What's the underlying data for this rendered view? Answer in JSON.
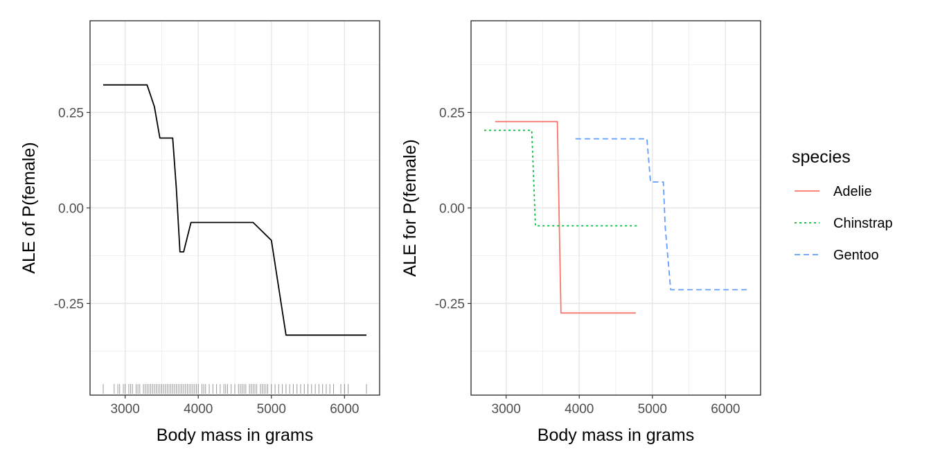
{
  "chart_data": [
    {
      "type": "line",
      "xlabel": "Body mass in grams",
      "ylabel": "ALE of P(female)",
      "xlim": [
        2520,
        6480
      ],
      "ylim": [
        -0.49,
        0.49
      ],
      "xticks": [
        3000,
        4000,
        5000,
        6000
      ],
      "xtick_labels": [
        "3000",
        "4000",
        "5000",
        "6000"
      ],
      "yticks": [
        -0.25,
        0,
        0.25
      ],
      "ytick_labels": [
        "-0.25",
        "0.00",
        "0.25"
      ],
      "grid": true,
      "series": [
        {
          "color": "#000000",
          "dash": "solid",
          "x": [
            2700,
            3300,
            3400,
            3475,
            3650,
            3700,
            3750,
            3800,
            3900,
            4750,
            5000,
            5200,
            6300
          ],
          "y": [
            0.322,
            0.322,
            0.265,
            0.183,
            0.183,
            0.05,
            -0.115,
            -0.115,
            -0.038,
            -0.038,
            -0.085,
            -0.333,
            -0.333
          ]
        }
      ],
      "rug": [
        2700,
        2850,
        2900,
        2925,
        2975,
        3000,
        3050,
        3075,
        3100,
        3150,
        3175,
        3200,
        3250,
        3275,
        3300,
        3325,
        3350,
        3375,
        3400,
        3425,
        3450,
        3475,
        3500,
        3525,
        3550,
        3575,
        3600,
        3625,
        3650,
        3675,
        3700,
        3725,
        3750,
        3775,
        3800,
        3825,
        3850,
        3875,
        3900,
        3925,
        3950,
        3975,
        4000,
        4050,
        4075,
        4100,
        4150,
        4200,
        4250,
        4300,
        4350,
        4375,
        4400,
        4450,
        4500,
        4550,
        4575,
        4600,
        4625,
        4650,
        4700,
        4725,
        4750,
        4775,
        4800,
        4850,
        4875,
        4900,
        4925,
        4950,
        5000,
        5050,
        5100,
        5150,
        5200,
        5250,
        5300,
        5350,
        5400,
        5450,
        5500,
        5550,
        5600,
        5650,
        5700,
        5750,
        5800,
        5850,
        5950,
        6000,
        6050,
        6300
      ]
    },
    {
      "type": "line",
      "xlabel": "Body mass in grams",
      "ylabel": "ALE for P(female)",
      "xlim": [
        2520,
        6480
      ],
      "ylim": [
        -0.49,
        0.49
      ],
      "xticks": [
        3000,
        4000,
        5000,
        6000
      ],
      "xtick_labels": [
        "3000",
        "4000",
        "5000",
        "6000"
      ],
      "yticks": [
        -0.25,
        0,
        0.25
      ],
      "ytick_labels": [
        "-0.25",
        "0.00",
        "0.25"
      ],
      "grid": true,
      "legend": {
        "title": "species",
        "position": "right"
      },
      "series": [
        {
          "name": "Adelie",
          "color": "#F8766D",
          "dash": "solid",
          "x": [
            2850,
            3700,
            3725,
            3750,
            4775
          ],
          "y": [
            0.226,
            0.226,
            -0.025,
            -0.275,
            -0.275
          ]
        },
        {
          "name": "Chinstrap",
          "color": "#00BA38",
          "dash": "dotted",
          "x": [
            2700,
            3350,
            3375,
            3400,
            4800
          ],
          "y": [
            0.203,
            0.203,
            0.08,
            -0.047,
            -0.047
          ]
        },
        {
          "name": "Gentoo",
          "color": "#619CFF",
          "dash": "dashed",
          "x": [
            3950,
            4925,
            4975,
            5150,
            5175,
            5250,
            6300
          ],
          "y": [
            0.181,
            0.181,
            0.068,
            0.068,
            -0.05,
            -0.214,
            -0.214
          ]
        }
      ]
    }
  ]
}
